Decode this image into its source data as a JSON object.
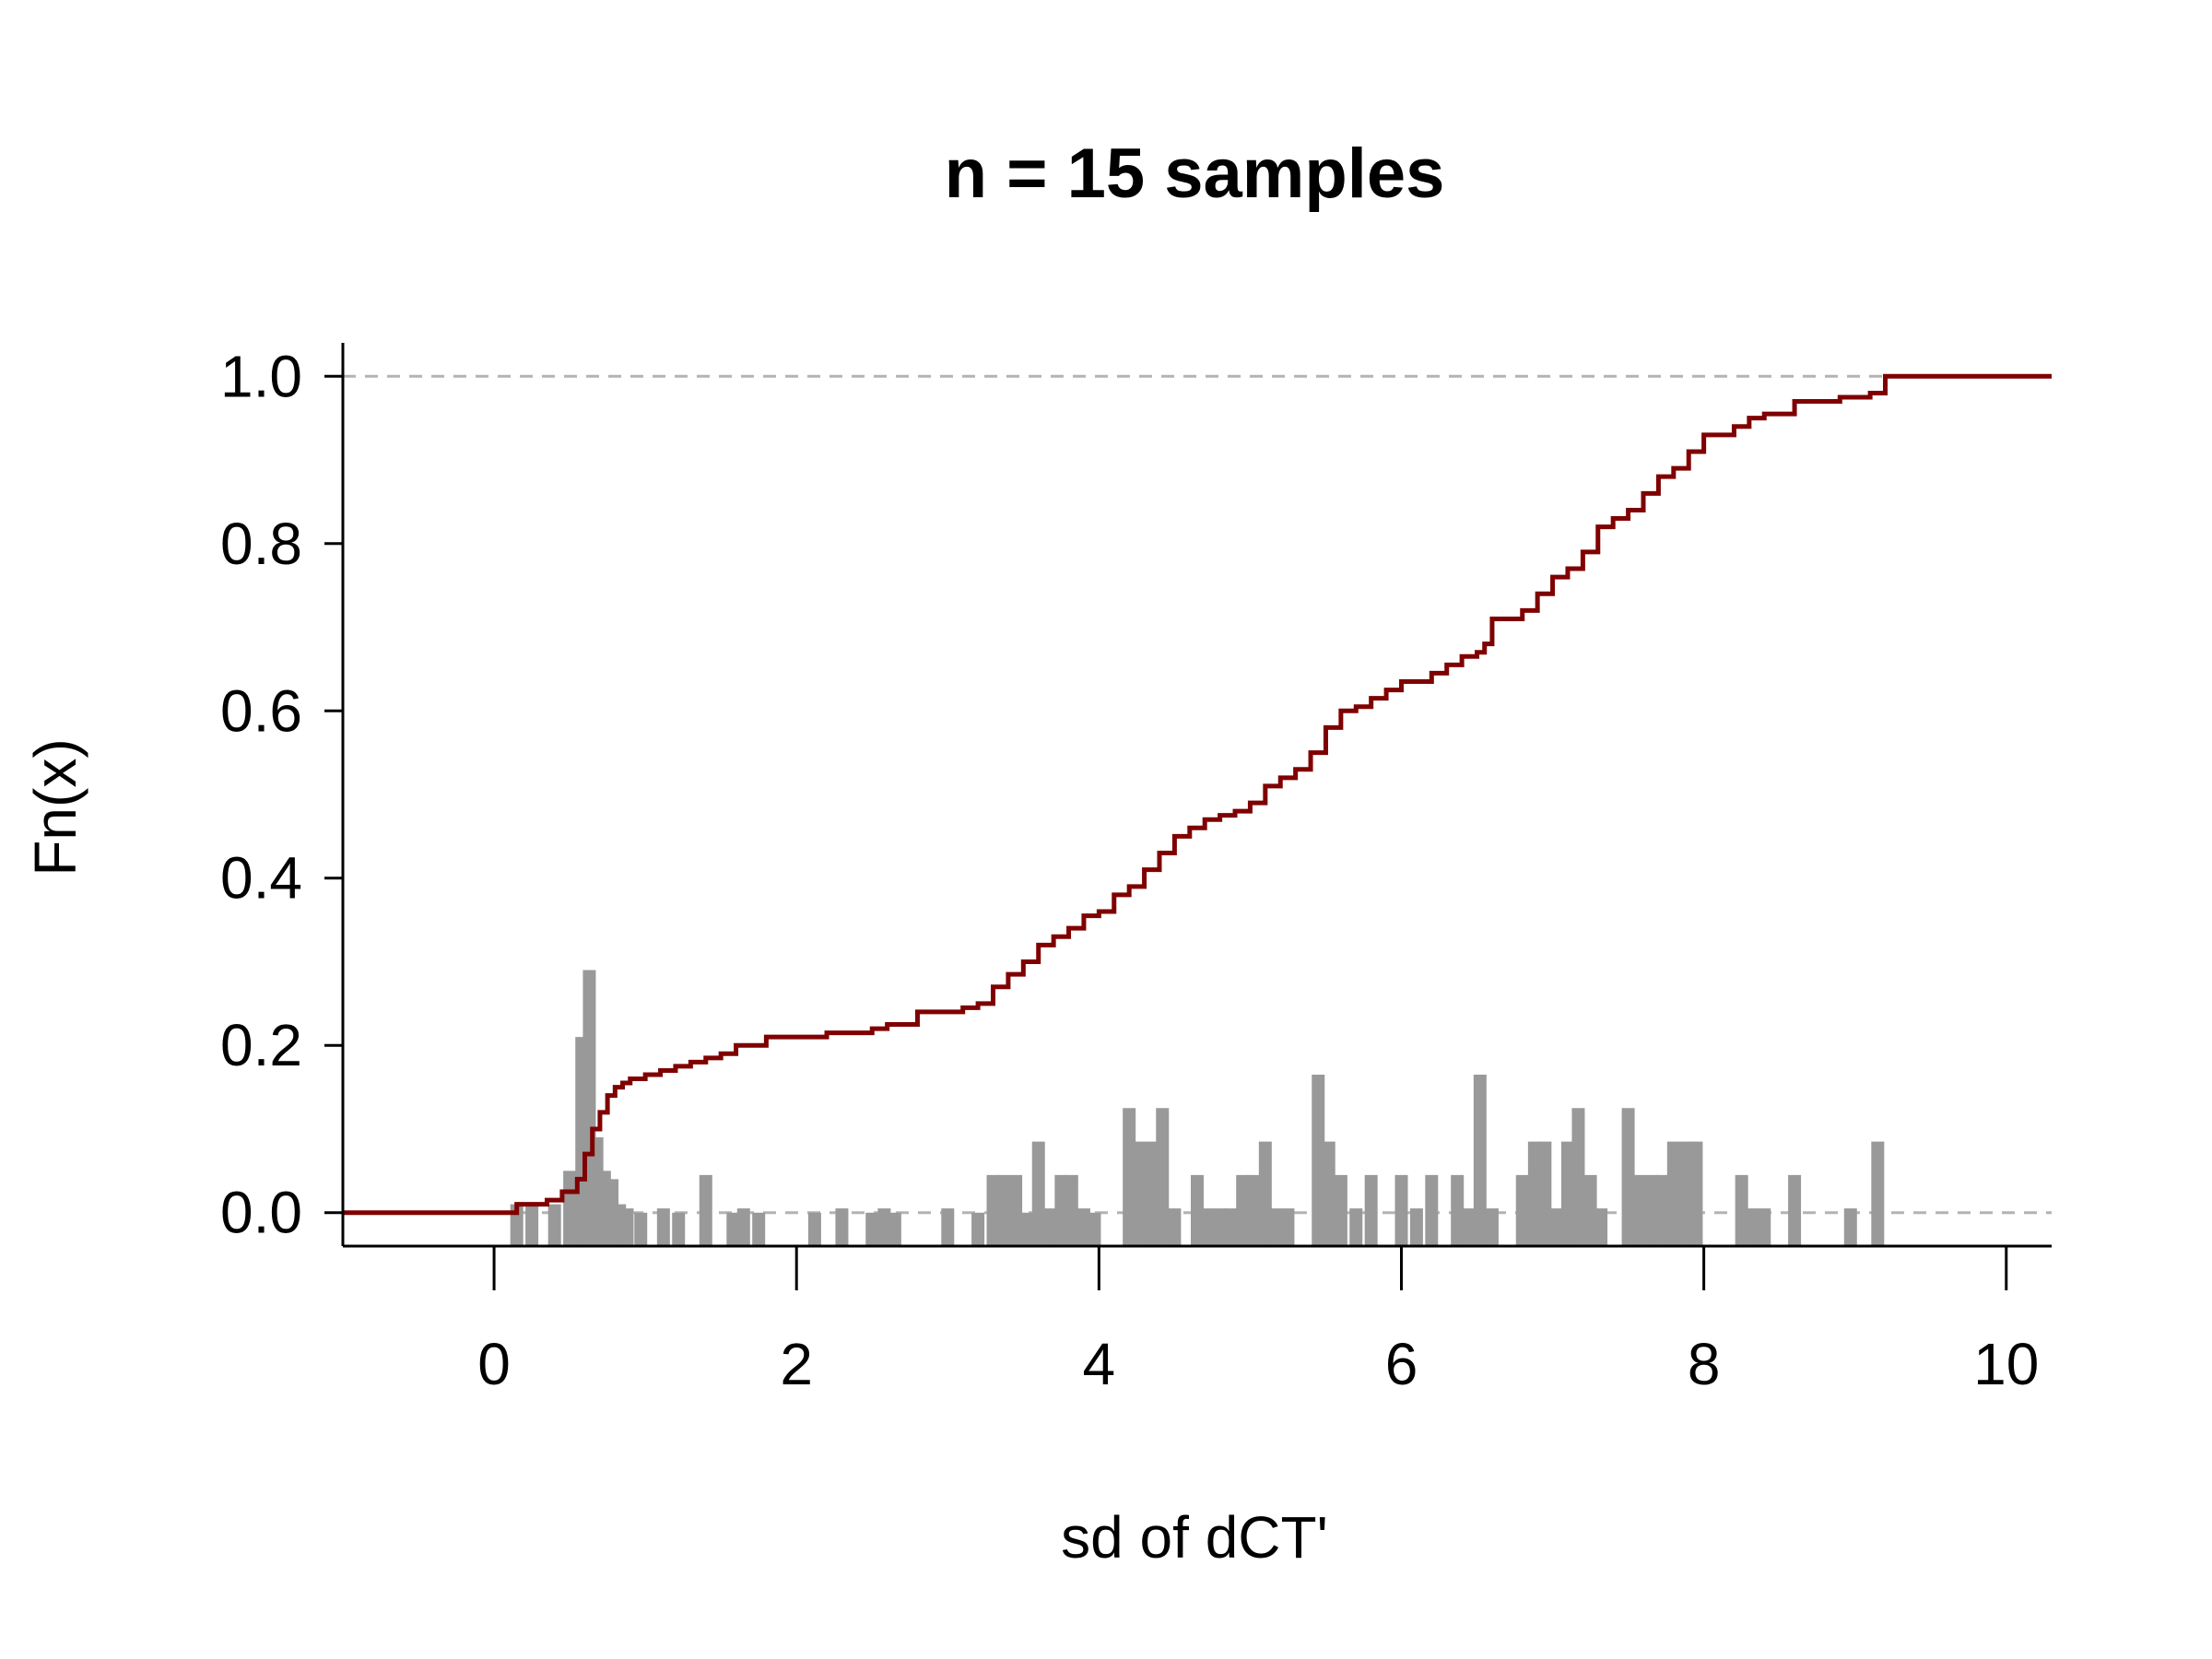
{
  "chart_data": {
    "type": "ecdf",
    "title": "n = 15 samples",
    "xlabel": "sd of dCT'",
    "ylabel": "Fn(x)",
    "xlim": [
      -1.0,
      10.3
    ],
    "ylim": [
      -0.04,
      1.04
    ],
    "x_ticks": [
      0,
      2,
      4,
      6,
      8,
      10
    ],
    "y_ticks": [
      0.0,
      0.2,
      0.4,
      0.6,
      0.8,
      1.0
    ],
    "y_tick_labels": [
      "0.0",
      "0.2",
      "0.4",
      "0.6",
      "0.8",
      "1.0"
    ],
    "reference_lines_y": [
      0.0,
      1.0
    ],
    "colors": {
      "ecdf": "#7f0000",
      "spikes": "#999999",
      "reference": "#b3b3b3",
      "axis": "#000000"
    },
    "ecdf": {
      "x": [
        0.15,
        0.35,
        0.45,
        0.55,
        0.6,
        0.65,
        0.7,
        0.75,
        0.8,
        0.85,
        0.9,
        0.95,
        1.0,
        1.1,
        1.2,
        1.3,
        1.4,
        1.5,
        1.6,
        1.8,
        2.0,
        2.2,
        2.4,
        2.5,
        2.6,
        2.8,
        3.1,
        3.2,
        3.3,
        3.4,
        3.5,
        3.6,
        3.7,
        3.8,
        3.9,
        4.0,
        4.1,
        4.2,
        4.3,
        4.4,
        4.5,
        4.6,
        4.7,
        4.8,
        4.9,
        5.0,
        5.1,
        5.2,
        5.3,
        5.4,
        5.5,
        5.6,
        5.7,
        5.8,
        5.9,
        6.0,
        6.2,
        6.3,
        6.4,
        6.5,
        6.55,
        6.6,
        6.8,
        6.9,
        7.0,
        7.1,
        7.2,
        7.3,
        7.4,
        7.5,
        7.6,
        7.7,
        7.8,
        7.9,
        8.0,
        8.2,
        8.3,
        8.4,
        8.6,
        8.9,
        9.1,
        9.2
      ],
      "y": [
        0.01,
        0.015,
        0.025,
        0.04,
        0.07,
        0.1,
        0.12,
        0.14,
        0.15,
        0.155,
        0.16,
        0.16,
        0.165,
        0.17,
        0.175,
        0.18,
        0.185,
        0.19,
        0.2,
        0.21,
        0.21,
        0.215,
        0.215,
        0.22,
        0.225,
        0.24,
        0.245,
        0.25,
        0.27,
        0.285,
        0.3,
        0.32,
        0.33,
        0.34,
        0.355,
        0.36,
        0.38,
        0.39,
        0.41,
        0.43,
        0.45,
        0.46,
        0.47,
        0.475,
        0.48,
        0.49,
        0.51,
        0.52,
        0.53,
        0.55,
        0.58,
        0.6,
        0.605,
        0.615,
        0.625,
        0.635,
        0.645,
        0.655,
        0.665,
        0.67,
        0.68,
        0.71,
        0.72,
        0.74,
        0.76,
        0.77,
        0.79,
        0.82,
        0.83,
        0.84,
        0.86,
        0.88,
        0.89,
        0.91,
        0.93,
        0.94,
        0.95,
        0.955,
        0.97,
        0.975,
        0.98,
        1.0
      ]
    },
    "spikes": {
      "x": [
        0.15,
        0.25,
        0.4,
        0.5,
        0.58,
        0.63,
        0.68,
        0.73,
        0.78,
        0.83,
        0.88,
        0.97,
        1.12,
        1.22,
        1.4,
        1.58,
        1.65,
        1.75,
        2.12,
        2.3,
        2.5,
        2.58,
        2.65,
        3.0,
        3.2,
        3.3,
        3.37,
        3.45,
        3.52,
        3.6,
        3.67,
        3.75,
        3.82,
        3.9,
        3.97,
        4.2,
        4.27,
        4.35,
        4.42,
        4.5,
        4.65,
        4.72,
        4.8,
        4.87,
        4.95,
        5.02,
        5.1,
        5.17,
        5.25,
        5.45,
        5.52,
        5.6,
        5.7,
        5.8,
        6.0,
        6.1,
        6.2,
        6.37,
        6.45,
        6.52,
        6.6,
        6.8,
        6.88,
        6.95,
        7.02,
        7.1,
        7.17,
        7.25,
        7.32,
        7.5,
        7.57,
        7.65,
        7.72,
        7.8,
        7.88,
        7.95,
        8.25,
        8.32,
        8.4,
        8.6,
        8.97,
        9.15
      ],
      "y": [
        0.01,
        0.01,
        0.01,
        0.05,
        0.21,
        0.29,
        0.09,
        0.05,
        0.04,
        0.01,
        0.005,
        0.0,
        0.005,
        0.0,
        0.045,
        0.0,
        0.005,
        0.0,
        0.0,
        0.005,
        0.0,
        0.005,
        0.0,
        0.005,
        0.0,
        0.045,
        0.045,
        0.045,
        0.0,
        0.085,
        0.005,
        0.045,
        0.045,
        0.005,
        0.0,
        0.125,
        0.085,
        0.085,
        0.125,
        0.005,
        0.045,
        0.005,
        0.005,
        0.005,
        0.045,
        0.045,
        0.085,
        0.005,
        0.005,
        0.165,
        0.085,
        0.045,
        0.005,
        0.045,
        0.045,
        0.005,
        0.045,
        0.045,
        0.005,
        0.165,
        0.005,
        0.045,
        0.085,
        0.085,
        0.005,
        0.085,
        0.125,
        0.045,
        0.005,
        0.125,
        0.045,
        0.045,
        0.045,
        0.085,
        0.085,
        0.085,
        0.045,
        0.005,
        0.005,
        0.045,
        0.005,
        0.085
      ]
    }
  }
}
